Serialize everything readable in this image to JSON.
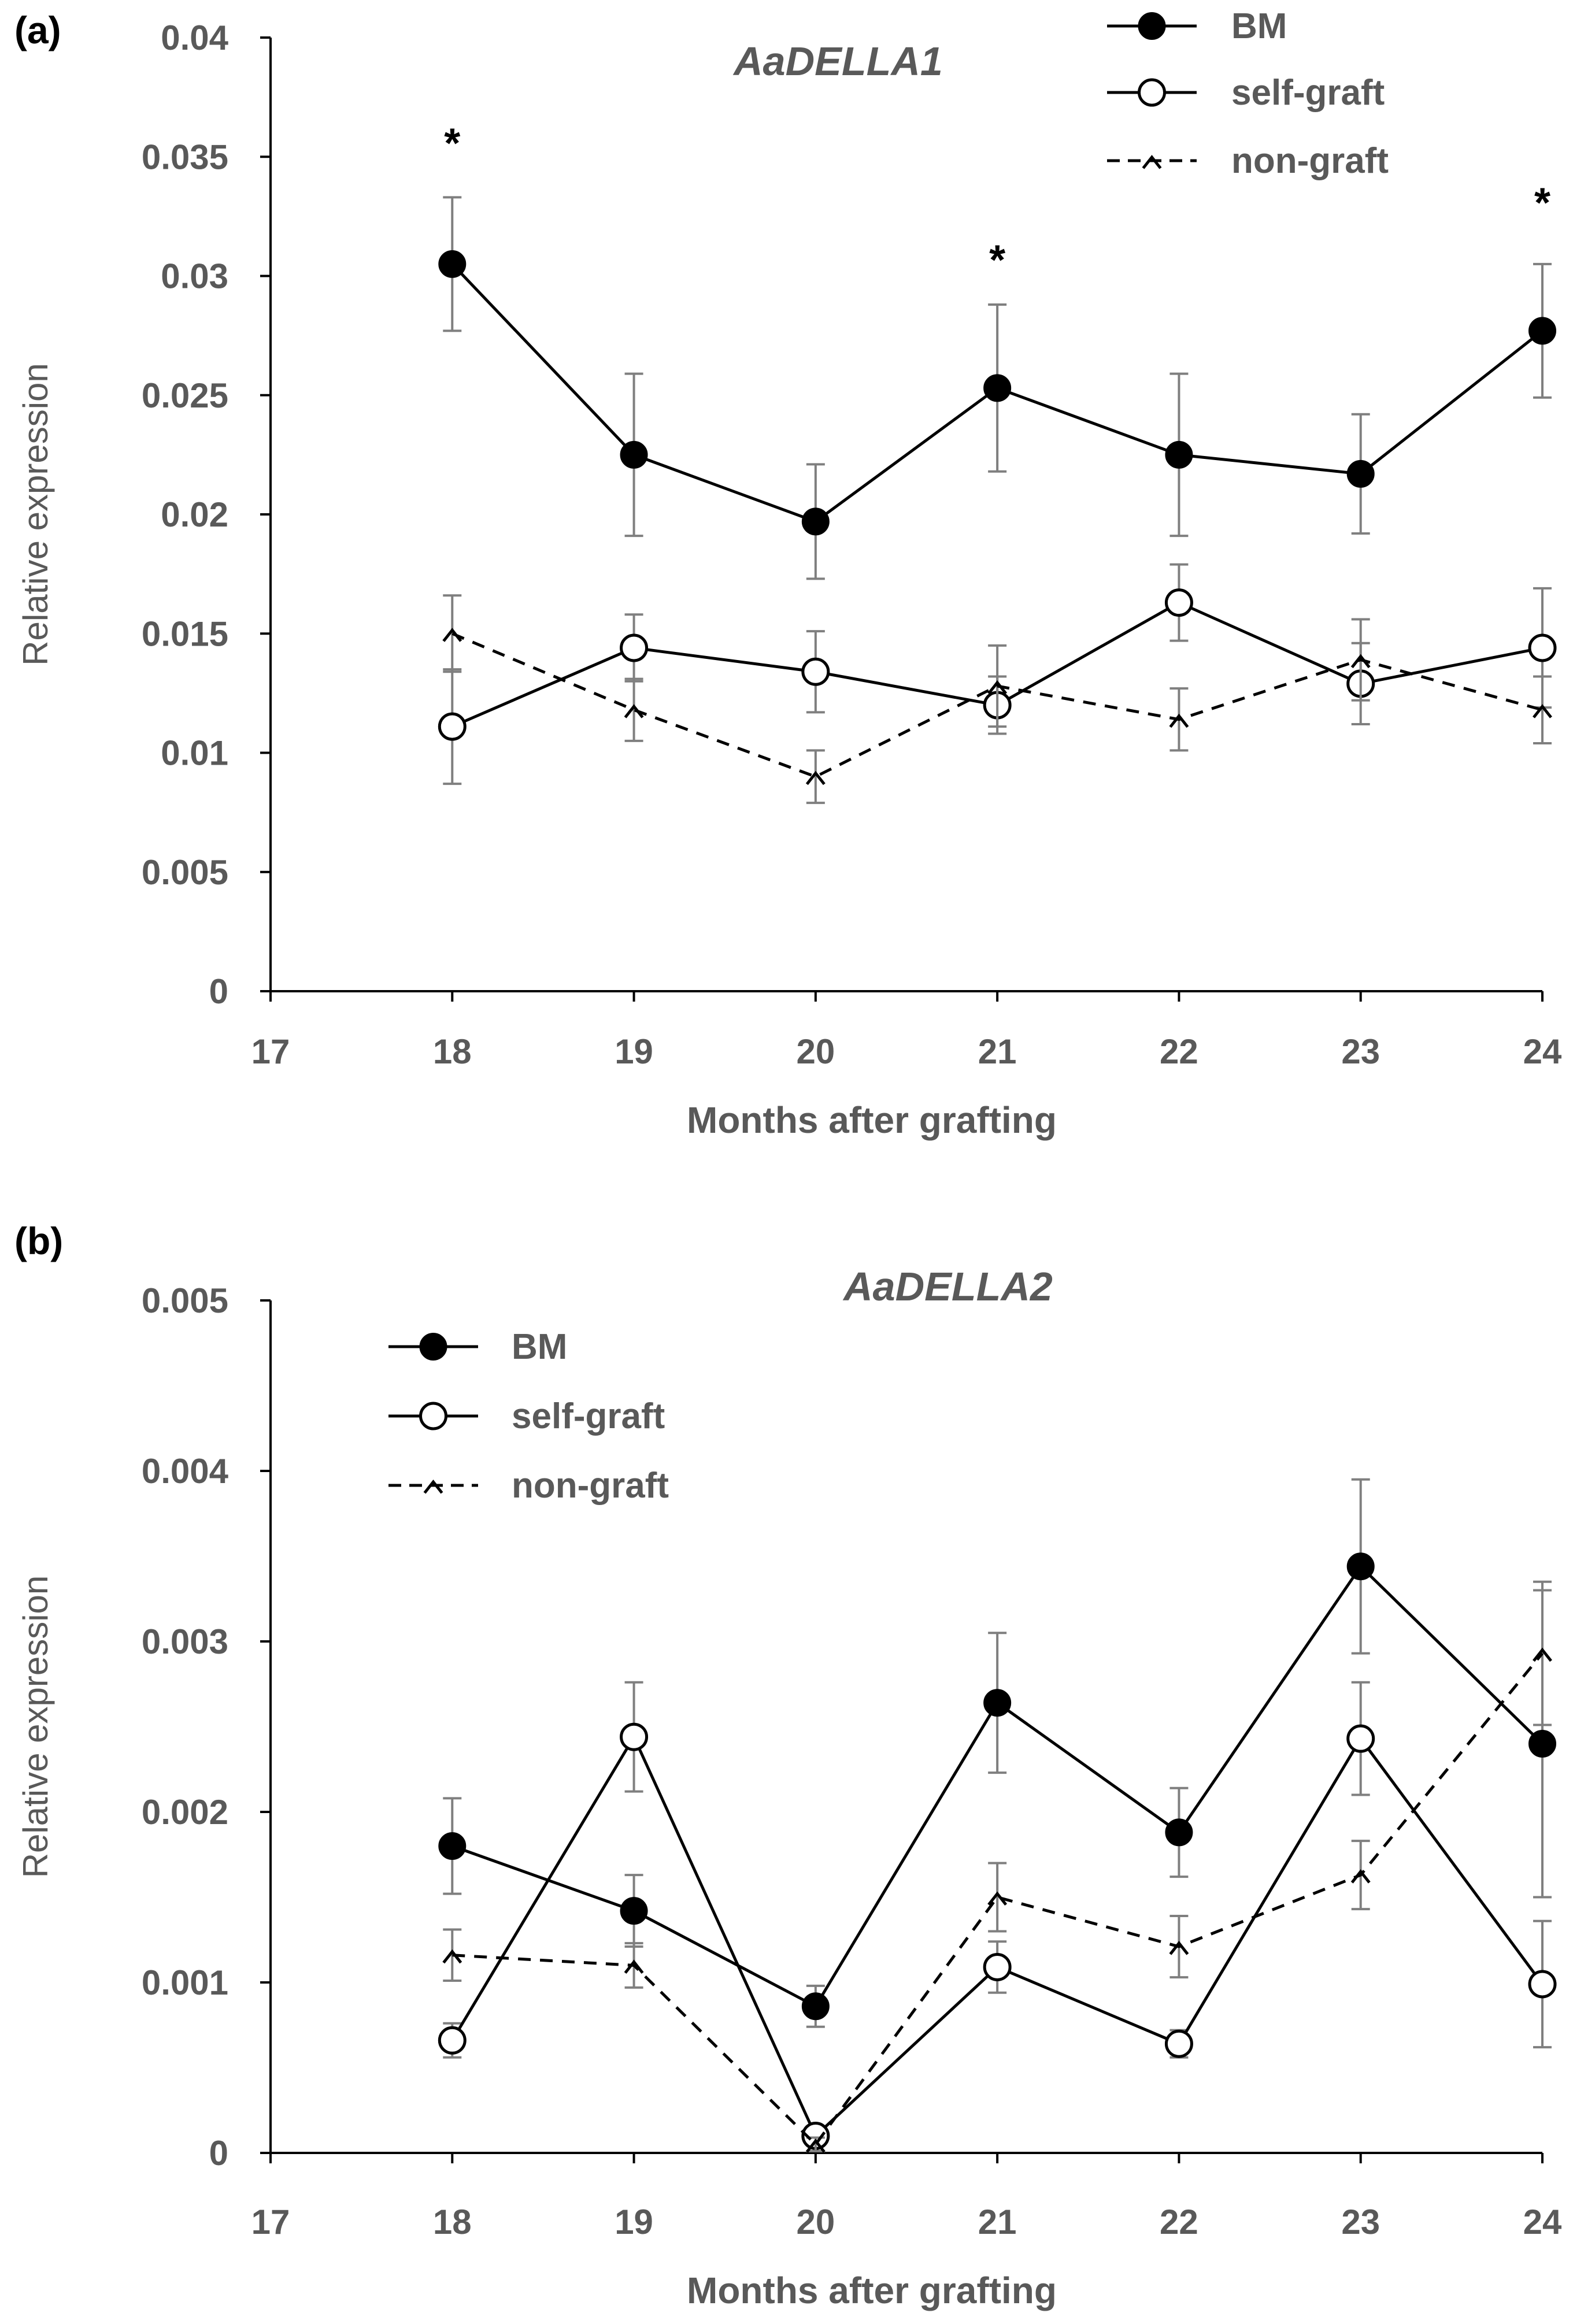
{
  "colors": {
    "line": "#000000",
    "axis": "#000000",
    "text": "#595959",
    "errorbar": "#7f7f7f",
    "open_fill": "#ffffff"
  },
  "chart_data": [
    {
      "type": "line",
      "panel_label": "(a)",
      "title": "AaDELLA1",
      "xlabel": "Months after grafting",
      "ylabel": "Relative expression",
      "xlim": [
        17,
        24
      ],
      "ylim": [
        0,
        0.04
      ],
      "xticks": [
        "17",
        "18",
        "19",
        "20",
        "21",
        "22",
        "23",
        "24"
      ],
      "yticks": [
        "0",
        "0.005",
        "0.01",
        "0.015",
        "0.02",
        "0.025",
        "0.03",
        "0.035",
        "0.04"
      ],
      "x": [
        18,
        19,
        20,
        21,
        22,
        23,
        24
      ],
      "legend_position": "top-right",
      "series": [
        {
          "name": "BM",
          "marker": "filled-circle",
          "dash": "solid",
          "values": [
            0.0305,
            0.0225,
            0.0197,
            0.0253,
            0.0225,
            0.0217,
            0.0277
          ],
          "errors": [
            0.0028,
            0.0034,
            0.0024,
            0.0035,
            0.0034,
            0.0025,
            0.0028
          ]
        },
        {
          "name": "self-graft",
          "marker": "open-circle",
          "dash": "solid",
          "values": [
            0.0111,
            0.0144,
            0.0134,
            0.012,
            0.0163,
            0.0129,
            0.0144
          ],
          "errors": [
            0.0024,
            0.0014,
            0.0017,
            0.0012,
            0.0016,
            0.0017,
            0.0025
          ]
        },
        {
          "name": "non-graft",
          "marker": "caret",
          "dash": "dashed",
          "values": [
            0.015,
            0.0118,
            0.009,
            0.0128,
            0.0114,
            0.0139,
            0.0118
          ],
          "errors": [
            0.0016,
            0.0013,
            0.0011,
            0.0017,
            0.0013,
            0.0017,
            0.0014
          ]
        }
      ],
      "annotations": [
        {
          "text": "*",
          "x": 18,
          "y": 0.0357
        },
        {
          "text": "*",
          "x": 21,
          "y": 0.0308
        },
        {
          "text": "*",
          "x": 24,
          "y": 0.0332
        }
      ]
    },
    {
      "type": "line",
      "panel_label": "(b)",
      "title": "AaDELLA2",
      "xlabel": "Months after grafting",
      "ylabel": "Relative expression",
      "xlim": [
        17,
        24
      ],
      "ylim": [
        0,
        0.005
      ],
      "xticks": [
        "17",
        "18",
        "19",
        "20",
        "21",
        "22",
        "23",
        "24"
      ],
      "yticks": [
        "0",
        "0.001",
        "0.002",
        "0.003",
        "0.004",
        "0.005"
      ],
      "x": [
        18,
        19,
        20,
        21,
        22,
        23,
        24
      ],
      "legend_position": "top-left",
      "series": [
        {
          "name": "BM",
          "marker": "filled-circle",
          "dash": "solid",
          "values": [
            0.0018,
            0.00142,
            0.00086,
            0.00264,
            0.00188,
            0.00344,
            0.0024
          ],
          "errors": [
            0.00028,
            0.00021,
            0.00012,
            0.00041,
            0.00026,
            0.00051,
            0.0009
          ]
        },
        {
          "name": "self-graft",
          "marker": "open-circle",
          "dash": "solid",
          "values": [
            0.00066,
            0.00244,
            0.0001,
            0.00109,
            0.00064,
            0.00243,
            0.00099
          ],
          "errors": [
            0.0001,
            0.00032,
            5e-05,
            0.00015,
            8e-05,
            0.00033,
            0.00037
          ]
        },
        {
          "name": "non-graft",
          "marker": "caret",
          "dash": "dashed",
          "values": [
            0.00116,
            0.0011,
            5e-05,
            0.0015,
            0.00121,
            0.00163,
            0.00293
          ],
          "errors": [
            0.00015,
            0.00013,
            4e-05,
            0.0002,
            0.00018,
            0.0002,
            0.00042
          ]
        }
      ],
      "annotations": []
    }
  ]
}
